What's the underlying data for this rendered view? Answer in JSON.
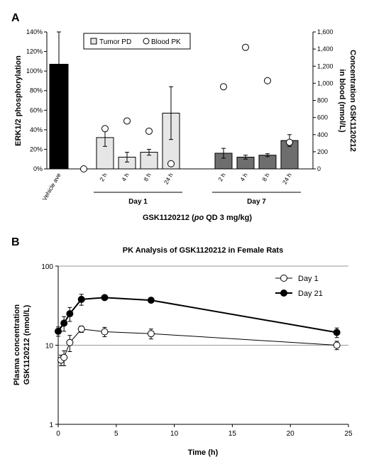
{
  "figure": {
    "panel_a_letter": "A",
    "panel_b_letter": "B"
  },
  "chart_data": [
    {
      "type": "bar",
      "panel": "A",
      "ylabel_left": "ERK1/2 phosphorylation",
      "ylabel_right_line1": "Concentration GSK1120212",
      "ylabel_right_line2": "in blood (nmol/L)",
      "ylim_left": [
        0,
        140
      ],
      "yticks_left": [
        "0%",
        "20%",
        "40%",
        "60%",
        "80%",
        "100%",
        "120%",
        "140%"
      ],
      "yticks_left_values": [
        0,
        20,
        40,
        60,
        80,
        100,
        120,
        140
      ],
      "ylim_right": [
        0,
        1600
      ],
      "yticks_right": [
        "0",
        "200",
        "400",
        "600",
        "800",
        "1,000",
        "1,200",
        "1,400",
        "1,600"
      ],
      "yticks_right_values": [
        0,
        200,
        400,
        600,
        800,
        1000,
        1200,
        1400,
        1600
      ],
      "legend": {
        "tumor_pd": "Tumor PD",
        "blood_pk": "Blood PK",
        "placement": "top-left"
      },
      "vehicle": {
        "label": "Vehicle ave",
        "value": 107,
        "err": 33,
        "color": "#000000"
      },
      "groups": [
        {
          "label": "Day 1",
          "color": "#e6e6e6",
          "categories": [
            "2 h",
            "4 h",
            "8 h",
            "24 h"
          ],
          "values": [
            32,
            12,
            17,
            57
          ],
          "errors": [
            9,
            5,
            3,
            27
          ],
          "pk": [
            470,
            560,
            440,
            60
          ]
        },
        {
          "label": "Day 7",
          "color": "#6e6e6e",
          "categories": [
            "2 h",
            "4 h",
            "8 h",
            "24 h"
          ],
          "values": [
            16,
            12,
            14,
            29
          ],
          "errors": [
            5,
            2,
            1.5,
            6
          ],
          "pk": [
            960,
            1420,
            1030,
            310
          ]
        }
      ],
      "vehicle_pk": 0,
      "xlabel_prefix": "GSK1120212 (",
      "xlabel_italic": "po",
      "xlabel_suffix": " QD 3 mg/kg)"
    },
    {
      "type": "line",
      "panel": "B",
      "title": "PK Analysis of GSK1120212 in Female Rats",
      "xlabel": "Time (h)",
      "ylabel_line1": "Plasma concentration",
      "ylabel_line2": "GSK1120212 (nmol/L)",
      "y_scale": "log",
      "xlim": [
        0,
        25
      ],
      "ylim": [
        1,
        100
      ],
      "xticks": [
        "0",
        "5",
        "10",
        "15",
        "20",
        "25"
      ],
      "xticks_values": [
        0,
        5,
        10,
        15,
        20,
        25
      ],
      "yticks": [
        "1",
        "10",
        "100"
      ],
      "yticks_values": [
        1,
        10,
        100
      ],
      "grid": "horizontal at 10 and 100",
      "legend_placement": "top-right",
      "series": [
        {
          "name": "Day 1",
          "marker": "open-circle",
          "x": [
            0.25,
            0.5,
            1,
            2,
            4,
            8,
            24
          ],
          "y": [
            6.5,
            7.0,
            10.8,
            16.0,
            14.8,
            14.0,
            10.0
          ],
          "err": [
            1.0,
            1.5,
            2.5,
            1.5,
            2.0,
            2.0,
            1.2
          ]
        },
        {
          "name": "Day 21",
          "marker": "filled-circle",
          "x": [
            0,
            0.5,
            1,
            2,
            4,
            8,
            24
          ],
          "y": [
            15.0,
            19.0,
            25.0,
            38.0,
            40.0,
            37.0,
            14.5
          ],
          "err": [
            2.0,
            4.0,
            5.0,
            6.0,
            2.0,
            2.0,
            2.0
          ]
        }
      ]
    }
  ]
}
